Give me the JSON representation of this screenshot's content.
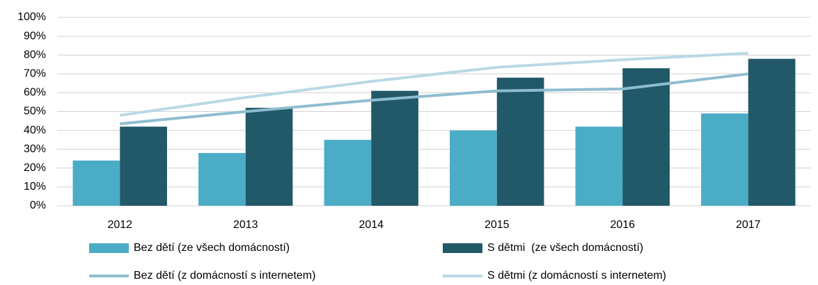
{
  "chart_data": {
    "type": "bar",
    "categories": [
      "2012",
      "2013",
      "2014",
      "2015",
      "2016",
      "2017"
    ],
    "series": [
      {
        "name": "Bez dětí (ze všech domácností)",
        "type": "bar",
        "color": "#4bacc6",
        "values": [
          24,
          28,
          35,
          40,
          42,
          49
        ]
      },
      {
        "name": "S dětmi  (ze všech domácností)",
        "type": "bar",
        "color": "#215968",
        "values": [
          42,
          52,
          61,
          68,
          73,
          78
        ]
      },
      {
        "name": "Bez dětí (z domácností s internetem)",
        "type": "line",
        "color": "#8fbdd0",
        "values": [
          43.5,
          50,
          56,
          61,
          62,
          70
        ]
      },
      {
        "name": "S dětmi (z domácností s internetem)",
        "type": "line",
        "color": "#b9d8e4",
        "values": [
          48,
          57.5,
          66,
          73.5,
          77.5,
          81
        ]
      }
    ],
    "ylim": [
      0,
      100
    ],
    "yticks": [
      {
        "value": 0,
        "label": "0%"
      },
      {
        "value": 10,
        "label": "10%"
      },
      {
        "value": 20,
        "label": "20%"
      },
      {
        "value": 30,
        "label": "30%"
      },
      {
        "value": 40,
        "label": "40%"
      },
      {
        "value": 50,
        "label": "50%"
      },
      {
        "value": 60,
        "label": "60%"
      },
      {
        "value": 70,
        "label": "70%"
      },
      {
        "value": 80,
        "label": "80%"
      },
      {
        "value": 90,
        "label": "90%"
      },
      {
        "value": 100,
        "label": "100%"
      }
    ],
    "grid": true,
    "legend": "bottom"
  }
}
